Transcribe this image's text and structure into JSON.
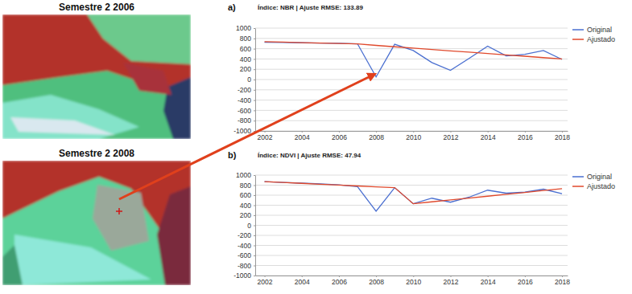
{
  "panels": [
    {
      "label": "Semestre 2 2006"
    },
    {
      "label": "Semestre 2 2008"
    }
  ],
  "chart_data": [
    {
      "type": "line",
      "title": "Índice: NBR | Ajuste RMSE: 133.89",
      "annotations": [
        "a)"
      ],
      "x": [
        2002,
        2003,
        2004,
        2005,
        2006,
        2007,
        2008,
        2009,
        2010,
        2011,
        2012,
        2013,
        2014,
        2015,
        2016,
        2017,
        2018
      ],
      "series": [
        {
          "name": "Original",
          "color": "#4a6fd0",
          "values": [
            725,
            720,
            715,
            710,
            705,
            695,
            50,
            685,
            565,
            330,
            180,
            410,
            650,
            460,
            490,
            565,
            390
          ]
        },
        {
          "name": "Ajustado",
          "color": "#e0492c",
          "values": [
            735,
            727,
            718,
            710,
            702,
            693,
            664,
            637,
            611,
            584,
            558,
            532,
            505,
            479,
            453,
            426,
            400
          ]
        }
      ],
      "xlim": [
        2001.5,
        2018.3
      ],
      "xticks": [
        2002,
        2004,
        2006,
        2008,
        2010,
        2012,
        2014,
        2016,
        2018
      ],
      "ylim": [
        -1000,
        1000
      ],
      "yticks": [
        -1000,
        -800,
        -600,
        -400,
        -200,
        0,
        200,
        400,
        600,
        800,
        1000
      ],
      "grid": true,
      "legend": "right"
    },
    {
      "type": "line",
      "title": "Índice: NDVI | Ajuste RMSE: 47.94",
      "annotations": [
        "b)"
      ],
      "x": [
        2002,
        2003,
        2004,
        2005,
        2006,
        2007,
        2008,
        2009,
        2010,
        2011,
        2012,
        2013,
        2014,
        2015,
        2016,
        2017,
        2018
      ],
      "series": [
        {
          "name": "Original",
          "color": "#4a6fd0",
          "values": [
            870,
            855,
            840,
            825,
            805,
            770,
            280,
            750,
            430,
            540,
            460,
            560,
            700,
            640,
            660,
            720,
            630
          ]
        },
        {
          "name": "Ajustado",
          "color": "#e0492c",
          "values": [
            870,
            853,
            836,
            819,
            801,
            784,
            767,
            750,
            430,
            468,
            505,
            543,
            580,
            618,
            655,
            693,
            730
          ]
        }
      ],
      "xlim": [
        2001.5,
        2018.3
      ],
      "xticks": [
        2002,
        2004,
        2006,
        2008,
        2010,
        2012,
        2014,
        2016,
        2018
      ],
      "ylim": [
        -1000,
        1000
      ],
      "yticks": [
        -1000,
        -800,
        -600,
        -400,
        -200,
        0,
        200,
        400,
        600,
        800,
        1000
      ],
      "grid": true,
      "legend": "right"
    }
  ]
}
